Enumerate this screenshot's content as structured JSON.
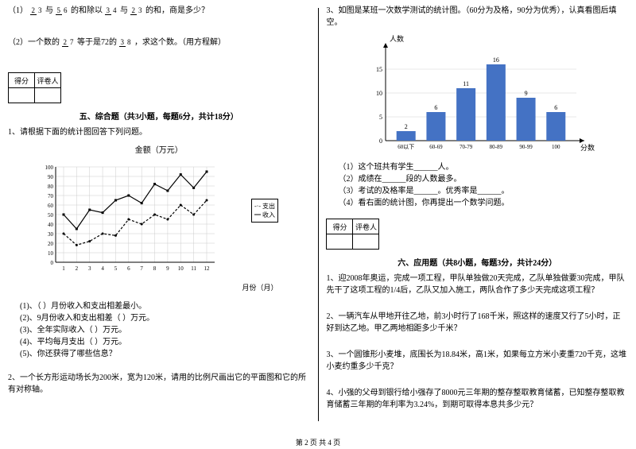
{
  "left": {
    "q1_1_prefix": "（1）",
    "q1_1_mid": "与",
    "q1_1_text2": "的和除以",
    "q1_1_text3": "与",
    "q1_1_text4": "的和，商是多少？",
    "q1_2_prefix": "（2）一个数的",
    "q1_2_mid": "等于是72的",
    "q1_2_end": "，求这个数。（用方程解）",
    "section5": "五、综合题（共3小题，每题6分，共计18分）",
    "q5_1": "1、请根据下面的统计图回答下列问题。",
    "line_chart": {
      "title": "金额（万元）",
      "x_label": "月份（月）",
      "x_ticks": [
        "1",
        "2",
        "3",
        "4",
        "5",
        "6",
        "7",
        "8",
        "9",
        "10",
        "11",
        "12"
      ],
      "y_ticks": [
        "0",
        "10",
        "20",
        "30",
        "40",
        "50",
        "60",
        "70",
        "80",
        "90",
        "100"
      ],
      "ylim": [
        0,
        100
      ],
      "legend": [
        "支出",
        "收入"
      ],
      "expense": [
        30,
        18,
        22,
        30,
        28,
        45,
        40,
        50,
        45,
        60,
        50,
        65
      ],
      "income": [
        50,
        35,
        55,
        52,
        65,
        70,
        62,
        82,
        75,
        92,
        78,
        95
      ],
      "expense_color": "#000000",
      "income_color": "#000000",
      "grid_color": "#cccccc"
    },
    "sub_q1": "(1)、（ ）月份收入和支出相差最小。",
    "sub_q2": "(2)、9月份收入和支出相差（ ）万元。",
    "sub_q3": "(3)、全年实际收入（ ）万元。",
    "sub_q4": "(4)、平均每月支出（ ）万元。",
    "sub_q5": "(5)、你还获得了哪些信息？",
    "q5_2": "2、一个长方形运动场长为200米，宽为120米，请用的比例尺画出它的平面图和它的所有对称轴。",
    "score_label1": "得分",
    "score_label2": "评卷人"
  },
  "right": {
    "q3": "3、如图是某班一次数学测试的统计图。（60分为及格，90分为优秀），认真看图后填空。",
    "bar_chart": {
      "y_label": "人数",
      "x_label": "分数",
      "categories": [
        "60以下",
        "60-69",
        "70-79",
        "80-89",
        "90-99",
        "100"
      ],
      "values": [
        2,
        6,
        11,
        16,
        9,
        6
      ],
      "bar_color": "#4472c4",
      "ylim": [
        0,
        20
      ],
      "y_ticks": [
        0,
        5,
        10,
        15
      ],
      "grid_color": "#d0d0d0",
      "label_fontsize": 8
    },
    "bq1": "（1）这个班共有学生______人。",
    "bq2": "（2）成绩在______段的人数最多。",
    "bq3": "（3）考试的及格率是______。优秀率是______。",
    "bq4": "（4）看右面的统计图，你再提出一个数学问题。",
    "score_label1": "得分",
    "score_label2": "评卷人",
    "section6": "六、应用题（共8小题，每题3分，共计24分）",
    "q6_1": "1、迎2008年奥运，完成一项工程，甲队单独做20天完成，乙队单独做要30完成，甲队先干了这项工程的1/4后，乙队又加入施工，两队合作了多少天完成这项工程？",
    "q6_2": "2、一辆汽车从甲地开往乙地，前3小时行了168千米，照这样的速度又行了5小时，正好到达乙地。甲乙两地相距多少千米？",
    "q6_3": "3、一个圆锥形小麦堆，底围长为18.84米，高1米，如果每立方米小麦重720千克，这堆小麦约重多少千克？",
    "q6_4": "4、小强的父母到银行给小强存了8000元三年期的整存整取教育储蓄，已知整存整取教育储蓄三年期的年利率为3.24%，到期可取得本息共多少元？"
  },
  "footer": "第 2 页 共 4 页"
}
